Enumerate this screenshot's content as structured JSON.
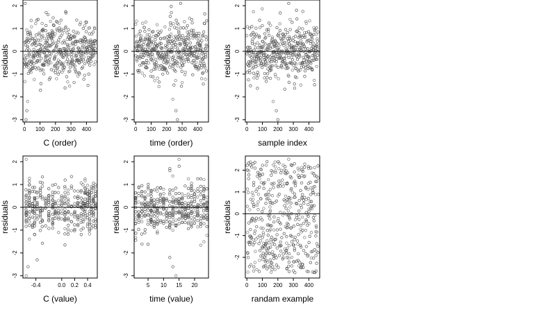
{
  "chart_data": [
    {
      "type": "scatter",
      "xlabel": "C (order)",
      "ylabel": "residuals",
      "xlim": [
        -10,
        470
      ],
      "ylim": [
        -3.1,
        2.25
      ],
      "xticks": [
        0,
        100,
        200,
        300,
        400
      ],
      "yticks": [
        -3,
        -2,
        -1,
        0,
        1,
        2
      ],
      "hline": 0,
      "pattern": "order",
      "n": 460,
      "seed": 11,
      "extreme_points": [
        [
          10,
          -3.0
        ],
        [
          15,
          -2.6
        ],
        [
          20,
          -2.2
        ],
        [
          5,
          2.1
        ],
        [
          140,
          1.7
        ]
      ]
    },
    {
      "type": "scatter",
      "xlabel": "time (order)",
      "ylabel": "residuals",
      "xlim": [
        -10,
        470
      ],
      "ylim": [
        -3.1,
        2.25
      ],
      "xticks": [
        0,
        100,
        200,
        300,
        400
      ],
      "yticks": [
        -3,
        -2,
        -1,
        0,
        1,
        2
      ],
      "hline": 0,
      "pattern": "order",
      "n": 460,
      "seed": 23,
      "extreme_points": [
        [
          270,
          -3.0
        ],
        [
          260,
          -2.6
        ],
        [
          240,
          -2.1
        ],
        [
          290,
          2.1
        ],
        [
          230,
          1.7
        ]
      ]
    },
    {
      "type": "scatter",
      "xlabel": "sample index",
      "ylabel": "residuals",
      "xlim": [
        -10,
        470
      ],
      "ylim": [
        -3.1,
        2.25
      ],
      "xticks": [
        0,
        100,
        200,
        300,
        400
      ],
      "yticks": [
        -3,
        -2,
        -1,
        0,
        1,
        2
      ],
      "hline": 0,
      "pattern": "order",
      "n": 460,
      "seed": 37,
      "extreme_points": [
        [
          200,
          -3.0
        ],
        [
          190,
          -2.6
        ],
        [
          170,
          -2.2
        ],
        [
          270,
          2.1
        ],
        [
          320,
          1.8
        ]
      ]
    },
    {
      "type": "scatter",
      "xlabel": "C (value)",
      "ylabel": "residuals",
      "xlim": [
        -0.6,
        0.55
      ],
      "ylim": [
        -3.1,
        2.25
      ],
      "xticks": [
        -0.4,
        0.0,
        0.2,
        0.4
      ],
      "xtick_labels": [
        "-0.4",
        "0.0",
        "0.2",
        "0.4"
      ],
      "yticks": [
        -3,
        -2,
        -1,
        0,
        1,
        2
      ],
      "hline": 0,
      "pattern": "columns",
      "columns": [
        -0.55,
        -0.5,
        -0.45,
        -0.42,
        -0.38,
        -0.33,
        -0.3,
        -0.25,
        -0.2,
        -0.14,
        -0.1,
        -0.05,
        0.0,
        0.05,
        0.1,
        0.15,
        0.2,
        0.25,
        0.3,
        0.33,
        0.36,
        0.4,
        0.43,
        0.46,
        0.49,
        0.52
      ],
      "n": 420,
      "seed": 53,
      "extreme_points": [
        [
          -0.55,
          -3.0
        ],
        [
          -0.52,
          -2.6
        ],
        [
          -0.38,
          -2.3
        ],
        [
          -0.55,
          2.1
        ],
        [
          0.05,
          -1.65
        ]
      ]
    },
    {
      "type": "scatter",
      "xlabel": "time (value)",
      "ylabel": "residuals",
      "xlim": [
        0.5,
        24.5
      ],
      "ylim": [
        -3.1,
        2.25
      ],
      "xticks": [
        5,
        10,
        15,
        20
      ],
      "yticks": [
        -3,
        -2,
        -1,
        0,
        1,
        2
      ],
      "hline": 0,
      "pattern": "columns",
      "columns": [
        1,
        2,
        3,
        4,
        5,
        6,
        7,
        8,
        9,
        10,
        11,
        12,
        13,
        14,
        15,
        16,
        17,
        18,
        19,
        20,
        21,
        22,
        23,
        24
      ],
      "n": 420,
      "seed": 71,
      "extreme_points": [
        [
          14,
          -3.0
        ],
        [
          13,
          -2.6
        ],
        [
          12,
          -2.2
        ],
        [
          15,
          2.1
        ],
        [
          12,
          1.7
        ]
      ]
    },
    {
      "type": "scatter",
      "xlabel": "randam example",
      "ylabel": "residuals",
      "xlim": [
        -10,
        470
      ],
      "ylim": [
        -2.95,
        2.65
      ],
      "xticks": [
        0,
        100,
        200,
        300,
        400
      ],
      "yticks": [
        -2,
        -1,
        0,
        1,
        2
      ],
      "hline": 0,
      "pattern": "uniform",
      "n": 460,
      "seed": 97,
      "extreme_points": [
        [
          310,
          -2.7
        ],
        [
          440,
          -2.7
        ],
        [
          270,
          2.5
        ],
        [
          40,
          2.3
        ]
      ]
    }
  ]
}
